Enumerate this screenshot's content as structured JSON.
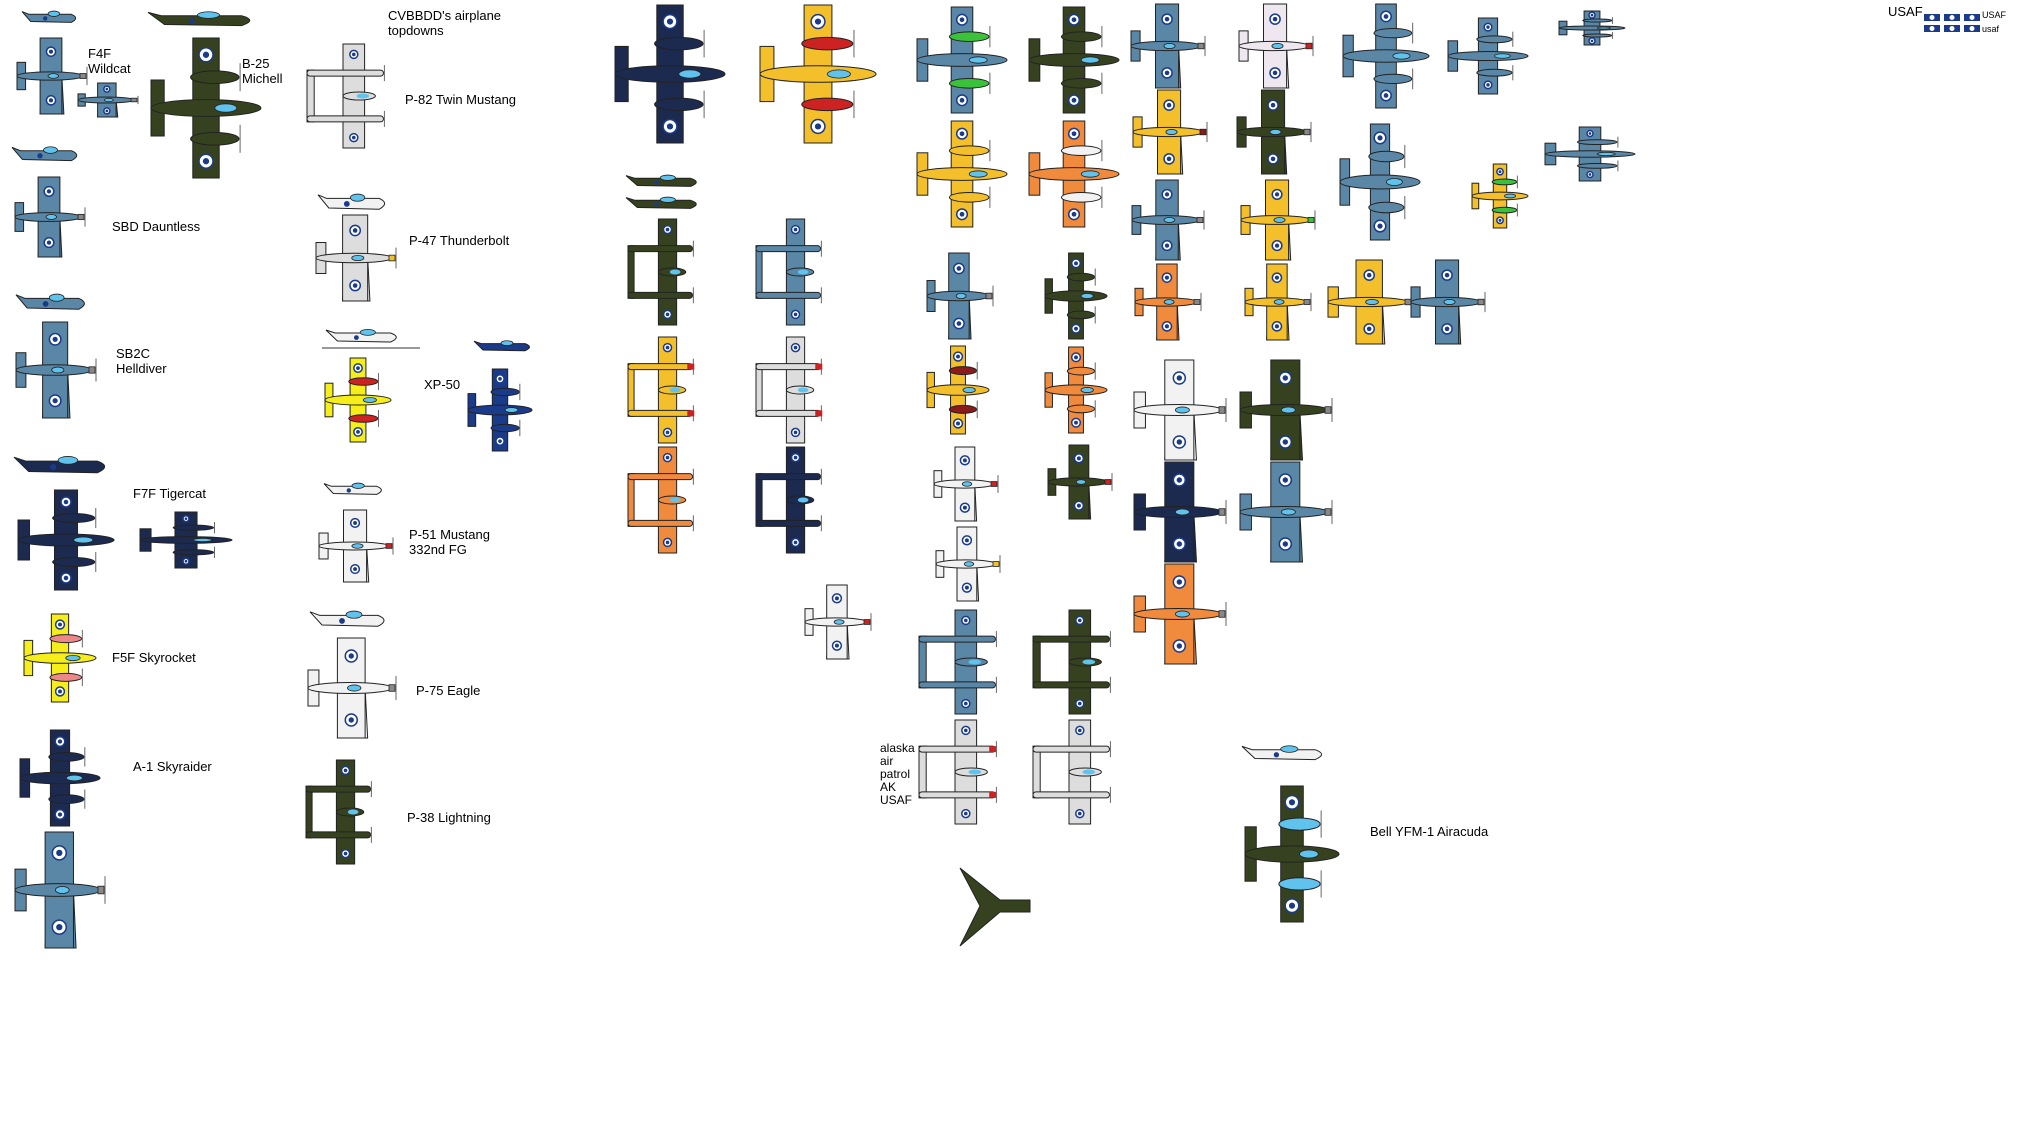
{
  "colors": {
    "navy_blue": "#5a87a6",
    "dark_blue": "#1c2a4f",
    "olive_drab": "#36421f",
    "yellow": "#f3c02b",
    "bright_yellow": "#f5ee1a",
    "orange": "#f08a3c",
    "silver": "#dddddd",
    "white": "#f2f2f2",
    "red": "#cc2222",
    "light_blue_accent": "#5fc3ee",
    "roundel_blue": "#1a3a8a",
    "green": "#39c23a"
  },
  "labels": {
    "sheet_title": "CVBBDD's airplane\ntopdowns",
    "f4f": "F4F\nWildcat",
    "b25": "B-25\nMichell",
    "sbd": "SBD Dauntless",
    "sb2c": "SB2C\nHelldiver",
    "f7f": "F7F Tigercat",
    "f5f": "F5F Skyrocket",
    "a1": "A-1 Skyraider",
    "p82": "P-82 Twin Mustang",
    "p47": "P-47 Thunderbolt",
    "xp50": "XP-50",
    "p51": "P-51 Mustang\n332nd FG",
    "p75": "P-75 Eagle",
    "p38": "P-38 Lightning",
    "alaska": "alaska\nair\npatrol\nAK\nUSAF",
    "airacuda": "Bell YFM-1 Airacuda",
    "usaf_a": "USAF",
    "usaf_b": "USAF",
    "usaf_c": "usaf",
    "ak_tail": "AK"
  }
}
